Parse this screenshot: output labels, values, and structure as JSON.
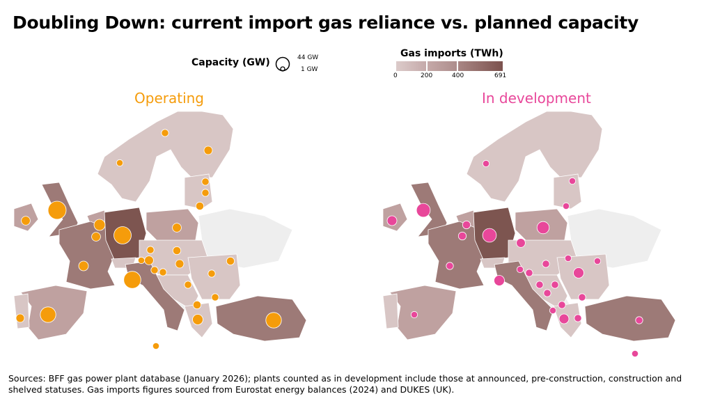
{
  "title": "Doubling Down: current import gas reliance vs. planned capacity",
  "legend": {
    "capacity_label": "Capacity (GW)",
    "capacity_max": "44 GW",
    "capacity_min": "1 GW",
    "gas_imports_label": "Gas imports (TWh)",
    "gas_ticks": [
      "0",
      "200",
      "400",
      "691"
    ],
    "gas_colors": [
      "#d9c7c6",
      "#b9999a",
      "#7c524e"
    ]
  },
  "panels": {
    "operating": {
      "title": "Operating",
      "color": "#f59c0b",
      "capacities_gw": [
        44,
        6,
        12,
        6,
        40,
        8,
        38,
        30,
        5,
        6,
        3,
        5,
        2,
        3,
        3,
        4,
        4,
        6,
        3,
        5,
        3,
        4,
        3,
        3,
        3,
        4,
        10,
        30,
        2,
        3,
        2
      ]
    },
    "development": {
      "title": "In development",
      "color": "#e8479a",
      "capacities_gw": [
        22,
        8,
        4,
        4,
        22,
        3,
        10,
        2,
        2,
        2,
        2,
        16,
        6,
        3,
        2,
        3,
        3,
        3,
        10,
        2,
        3,
        2,
        3,
        3,
        8,
        3,
        3,
        2,
        2
      ]
    }
  },
  "chart_data": {
    "type": "map",
    "title": "Doubling Down: current import gas reliance vs. planned capacity",
    "color_scale": {
      "label": "Gas imports (TWh)",
      "range": [
        0,
        691
      ],
      "breaks": [
        0,
        200,
        400,
        691
      ]
    },
    "size_scale": {
      "label": "Capacity (GW)",
      "range_gw": [
        1,
        44
      ]
    }
  },
  "footer": {
    "sources": "Sources: BFF gas power plant database (January 2026); plants counted as in development include those at announced, pre-construction, construction and shelved statuses. Gas imports figures sourced from Eurostat energy balances (2024) and DUKES (UK)."
  }
}
